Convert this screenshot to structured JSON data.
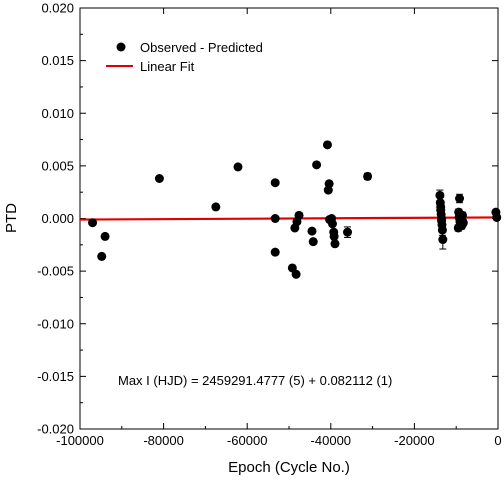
{
  "chart_data": {
    "type": "scatter",
    "title": "",
    "xlabel": "Epoch (Cycle No.)",
    "ylabel": "PTD",
    "xlim": [
      -100000,
      0
    ],
    "ylim": [
      -0.02,
      0.02
    ],
    "x_ticks": [
      -100000,
      -80000,
      -60000,
      -40000,
      -20000,
      0
    ],
    "x_tick_labels": [
      "-100000",
      "-80000",
      "-60000",
      "-40000",
      "-20000",
      "0"
    ],
    "y_ticks": [
      -0.02,
      -0.015,
      -0.01,
      -0.005,
      0,
      0.005,
      0.01,
      0.015,
      0.02
    ],
    "y_tick_labels": [
      "-0.020",
      "-0.015",
      "-0.010",
      "-0.005",
      "0.000",
      "0.005",
      "0.010",
      "0.015",
      "0.020"
    ],
    "grid": false,
    "legend_placement": "top-left",
    "annotation": "Max I (HJD) = 2459291.4777 (5) + 0.082112 (1)",
    "colors": {
      "points": "#000000",
      "fit": "#e00000"
    },
    "series": [
      {
        "name": "Observed - Predicted",
        "kind": "points",
        "points": [
          {
            "x": -97000,
            "y": -0.0004
          },
          {
            "x": -94800,
            "y": -0.0036
          },
          {
            "x": -94000,
            "y": -0.0017
          },
          {
            "x": -81000,
            "y": 0.0038
          },
          {
            "x": -67500,
            "y": 0.0011
          },
          {
            "x": -62200,
            "y": 0.0049
          },
          {
            "x": -53300,
            "y": 0.0034
          },
          {
            "x": -53300,
            "y": 0.0
          },
          {
            "x": -53300,
            "y": -0.0032
          },
          {
            "x": -49200,
            "y": -0.0047
          },
          {
            "x": -48300,
            "y": -0.0053
          },
          {
            "x": -48600,
            "y": -0.0009
          },
          {
            "x": -48100,
            "y": -0.0003
          },
          {
            "x": -47600,
            "y": 0.0003
          },
          {
            "x": -44500,
            "y": -0.0012
          },
          {
            "x": -44200,
            "y": -0.0022
          },
          {
            "x": -43400,
            "y": 0.0051
          },
          {
            "x": -40800,
            "y": 0.007
          },
          {
            "x": -40600,
            "y": 0.0027
          },
          {
            "x": -40400,
            "y": 0.0033
          },
          {
            "x": -40300,
            "y": -0.0001
          },
          {
            "x": -39800,
            "y": 0.0
          },
          {
            "x": -39600,
            "y": -0.0005
          },
          {
            "x": -39300,
            "y": -0.0013
          },
          {
            "x": -39200,
            "y": -0.0017
          },
          {
            "x": -39000,
            "y": -0.0024
          },
          {
            "x": -36000,
            "y": -0.0013,
            "err": 0.0005
          },
          {
            "x": -31200,
            "y": 0.004,
            "err": 0.0003
          },
          {
            "x": -13900,
            "y": 0.0022,
            "err": 0.0005
          },
          {
            "x": -13800,
            "y": 0.0015,
            "err": 0.0005
          },
          {
            "x": -13700,
            "y": 0.0008,
            "err": 0.0005
          },
          {
            "x": -13600,
            "y": 0.0004,
            "err": 0.0005
          },
          {
            "x": -13500,
            "y": -0.0002,
            "err": 0.0005
          },
          {
            "x": -13400,
            "y": -0.0006,
            "err": 0.0005
          },
          {
            "x": -13300,
            "y": -0.0011,
            "err": 0.0005
          },
          {
            "x": -13200,
            "y": -0.002,
            "err": 0.0009
          },
          {
            "x": -13700,
            "y": 0.0011,
            "err": 0.0005
          },
          {
            "x": -13500,
            "y": 0.0,
            "err": 0.0005
          },
          {
            "x": -9200,
            "y": 0.0019,
            "err": 0.0004
          },
          {
            "x": -9400,
            "y": 0.0006,
            "err": 0.0003
          },
          {
            "x": -9300,
            "y": 0.0001,
            "err": 0.0003
          },
          {
            "x": -9100,
            "y": -0.0003,
            "err": 0.0003
          },
          {
            "x": -8900,
            "y": -0.0005,
            "err": 0.0003
          },
          {
            "x": -8700,
            "y": -0.0007,
            "err": 0.0003
          },
          {
            "x": -9500,
            "y": -0.0009,
            "err": 0.0003
          },
          {
            "x": -8500,
            "y": 0.0003,
            "err": 0.0003
          },
          {
            "x": -8300,
            "y": -0.0004,
            "err": 0.0003
          },
          {
            "x": -500,
            "y": 0.0006,
            "err": 0.0002
          },
          {
            "x": -300,
            "y": 0.0001,
            "err": 0.0002
          }
        ]
      },
      {
        "name": "Linear Fit",
        "kind": "line",
        "x": [
          -100000,
          0
        ],
        "y": [
          -0.0001,
          0.0001
        ]
      }
    ]
  }
}
